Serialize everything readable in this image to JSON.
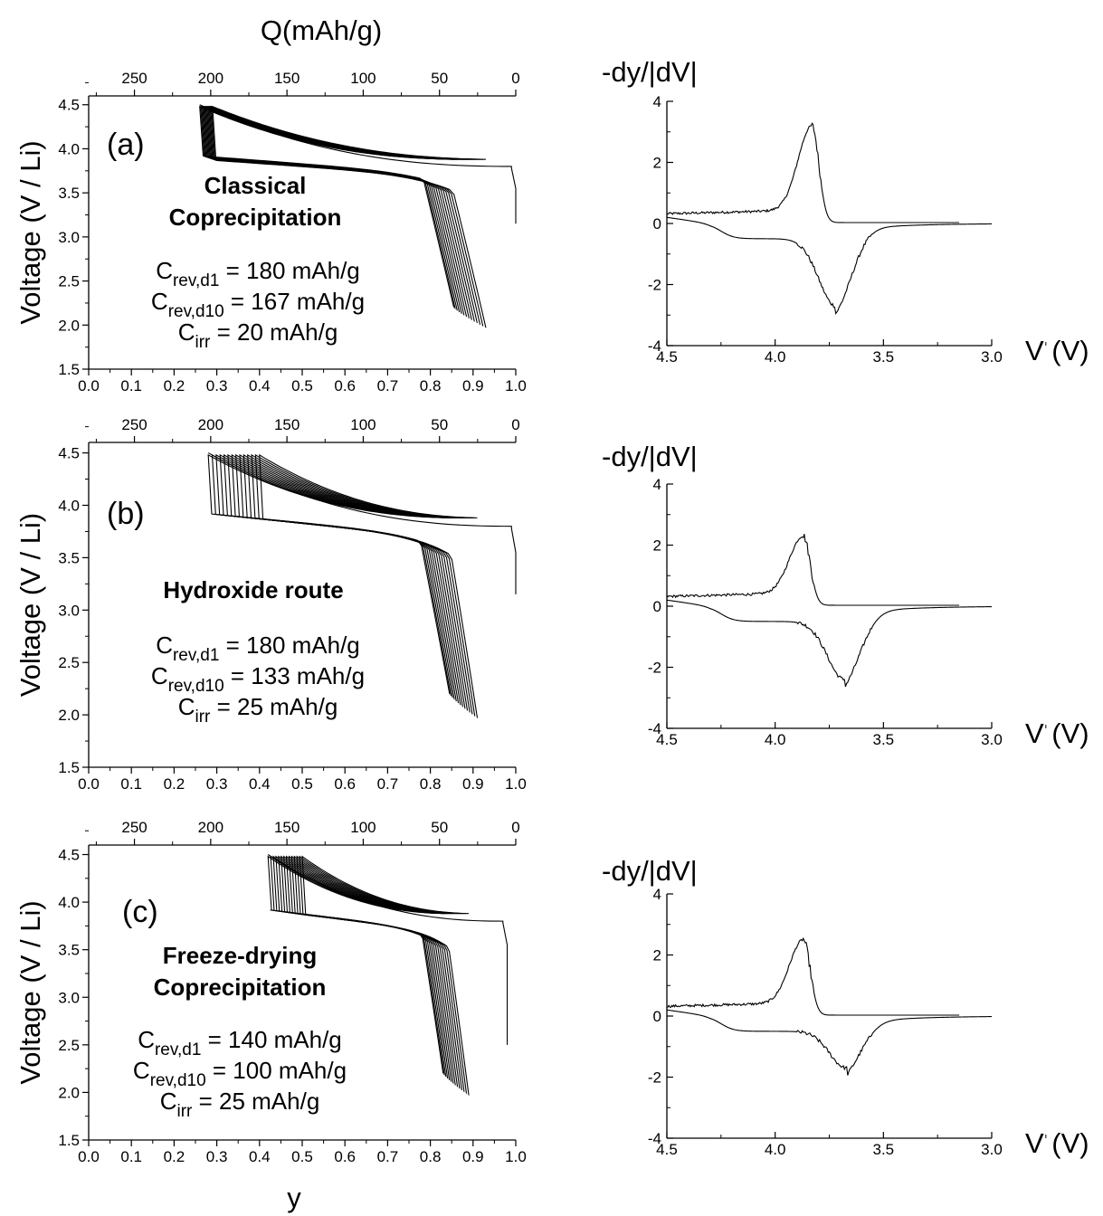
{
  "figure": {
    "q_axis_label": "Q(mAh/g)",
    "y_axis_label": "y",
    "voltage_axis_label": "Voltage (V / Li)",
    "deriv_axis_label": "-dy/|dV|",
    "v_axis_label": "V (V)"
  },
  "panels": [
    {
      "tag": "(a)",
      "method": [
        "Classical",
        "Coprecipitation"
      ],
      "caps": [
        {
          "main": "C",
          "sub": "rev,d1",
          "value": " = 180 mAh/g"
        },
        {
          "main": "C",
          "sub": "rev,d10",
          "value": " = 167 mAh/g"
        },
        {
          "main": "C",
          "sub": "irr",
          "value": " = 20 mAh/g"
        }
      ]
    },
    {
      "tag": "(b)",
      "method": [
        "Hydroxide route"
      ],
      "caps": [
        {
          "main": "C",
          "sub": "rev,d1",
          "value": " = 180 mAh/g"
        },
        {
          "main": "C",
          "sub": "rev,d10",
          "value": " = 133 mAh/g"
        },
        {
          "main": "C",
          "sub": "irr",
          "value": " = 25 mAh/g"
        }
      ]
    },
    {
      "tag": "(c)",
      "method": [
        "Freeze-drying",
        "Coprecipitation"
      ],
      "caps": [
        {
          "main": "C",
          "sub": "rev,d1",
          "value": " = 140 mAh/g"
        },
        {
          "main": "C",
          "sub": "rev,d10",
          "value": " = 100 mAh/g"
        },
        {
          "main": "C",
          "sub": "irr",
          "value": " = 25 mAh/g"
        }
      ]
    }
  ],
  "chart_data": [
    {
      "type": "line",
      "panel": "(a)",
      "xlabel": "y",
      "x2label": "Q(mAh/g)",
      "ylabel": "Voltage (V / Li)",
      "xlim": [
        0.0,
        1.0
      ],
      "ylim": [
        1.5,
        4.6
      ],
      "xticks": [
        "0.0",
        "0.1",
        "0.2",
        "0.3",
        "0.4",
        "0.5",
        "0.6",
        "0.7",
        "0.8",
        "0.9",
        "1.0"
      ],
      "yticks": [
        "1.5",
        "2.0",
        "2.5",
        "3.0",
        "3.5",
        "4.0",
        "4.5"
      ],
      "x2ticks": [
        "250",
        "200",
        "150",
        "100",
        "50",
        "0"
      ],
      "curves": {
        "n_cycles": 14,
        "y_min_charge": 0.26,
        "y_max_charge": 0.29,
        "y_end_discharge_min": 0.855,
        "y_end_discharge_max": 0.93,
        "first_charge_start_y": 1.0,
        "first_charge_start_v": 3.15
      }
    },
    {
      "type": "line",
      "panel": "(a) derivative",
      "xlabel": "V (V)",
      "ylabel": "-dy/|dV|",
      "xlim": [
        4.5,
        3.0
      ],
      "ylim": [
        -4,
        4
      ],
      "xticks": [
        "4.5",
        "4.0",
        "3.5",
        "3.0"
      ],
      "yticks": [
        "-4",
        "-2",
        "0",
        "2",
        "4"
      ],
      "peaks": {
        "charge_peak_v": 3.83,
        "charge_peak_value": 3.2,
        "discharge_peak_v": 3.72,
        "discharge_peak_value": -2.2
      }
    },
    {
      "type": "line",
      "panel": "(b)",
      "xlabel": "y",
      "x2label": "Q(mAh/g)",
      "ylabel": "Voltage (V / Li)",
      "xlim": [
        0.0,
        1.0
      ],
      "ylim": [
        1.5,
        4.6
      ],
      "xticks": [
        "0.0",
        "0.1",
        "0.2",
        "0.3",
        "0.4",
        "0.5",
        "0.6",
        "0.7",
        "0.8",
        "0.9",
        "1.0"
      ],
      "yticks": [
        "1.5",
        "2.0",
        "2.5",
        "3.0",
        "3.5",
        "4.0",
        "4.5"
      ],
      "x2ticks": [
        "250",
        "200",
        "150",
        "100",
        "50",
        "0"
      ],
      "curves": {
        "n_cycles": 14,
        "y_min_charge": 0.28,
        "y_max_charge": 0.4,
        "y_end_discharge_min": 0.845,
        "y_end_discharge_max": 0.91,
        "first_charge_start_y": 1.0,
        "first_charge_start_v": 3.15
      }
    },
    {
      "type": "line",
      "panel": "(b) derivative",
      "xlabel": "V (V)",
      "ylabel": "-dy/|dV|",
      "xlim": [
        4.5,
        3.0
      ],
      "ylim": [
        -4,
        4
      ],
      "xticks": [
        "4.5",
        "4.0",
        "3.5",
        "3.0"
      ],
      "yticks": [
        "-4",
        "-2",
        "0",
        "2",
        "4"
      ],
      "peaks": {
        "charge_peak_v": 3.87,
        "charge_peak_value": 2.3,
        "discharge_peak_v": 3.68,
        "discharge_peak_value": -1.9
      }
    },
    {
      "type": "line",
      "panel": "(c)",
      "xlabel": "y",
      "x2label": "Q(mAh/g)",
      "ylabel": "Voltage (V / Li)",
      "xlim": [
        0.0,
        1.0
      ],
      "ylim": [
        1.5,
        4.6
      ],
      "xticks": [
        "0.0",
        "0.1",
        "0.2",
        "0.3",
        "0.4",
        "0.5",
        "0.6",
        "0.7",
        "0.8",
        "0.9",
        "1.0"
      ],
      "yticks": [
        "1.5",
        "2.0",
        "2.5",
        "3.0",
        "3.5",
        "4.0",
        "4.5"
      ],
      "x2ticks": [
        "250",
        "200",
        "150",
        "100",
        "50",
        "0"
      ],
      "curves": {
        "n_cycles": 14,
        "y_min_charge": 0.42,
        "y_max_charge": 0.5,
        "y_end_discharge_min": 0.83,
        "y_end_discharge_max": 0.89,
        "first_charge_start_y": 0.98,
        "first_charge_start_v": 2.5
      }
    },
    {
      "type": "line",
      "panel": "(c) derivative",
      "xlabel": "V (V)",
      "ylabel": "-dy/|dV|",
      "xlim": [
        4.5,
        3.0
      ],
      "ylim": [
        -4,
        4
      ],
      "xticks": [
        "4.5",
        "4.0",
        "3.5",
        "3.0"
      ],
      "yticks": [
        "-4",
        "-2",
        "0",
        "2",
        "4"
      ],
      "peaks": {
        "charge_peak_v": 3.87,
        "charge_peak_value": 2.5,
        "discharge_peak_v": 3.67,
        "discharge_peak_value": -1.2
      }
    }
  ]
}
